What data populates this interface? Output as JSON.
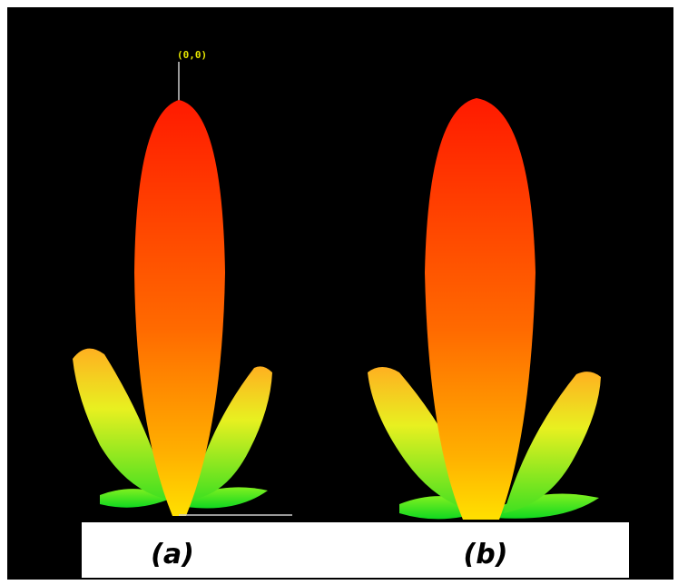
{
  "origin_label": "(0,0)",
  "captions": [
    "(a)",
    "(b)"
  ]
}
